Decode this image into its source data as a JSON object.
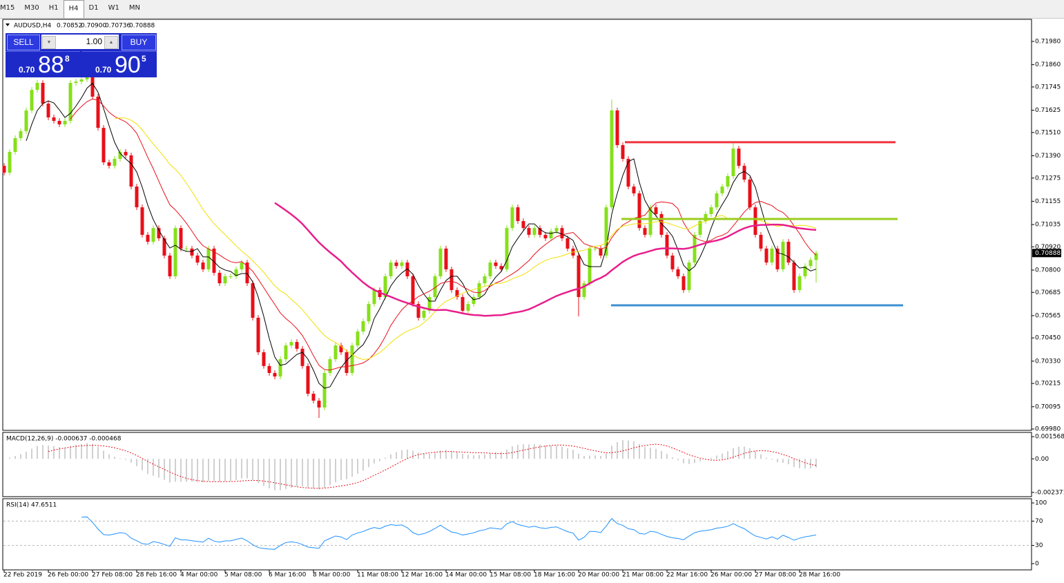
{
  "toolbar": {
    "timeframes": [
      "M15",
      "M30",
      "H1",
      "H4",
      "D1",
      "W1",
      "MN"
    ],
    "active": "H4"
  },
  "trade_panel": {
    "sell": "SELL",
    "buy": "BUY",
    "lots": "1.00",
    "bid": {
      "prefix": "0.70",
      "big": "88",
      "small": "8"
    },
    "ask": {
      "prefix": "0.70",
      "big": "90",
      "small": "5"
    }
  },
  "chart_data": [
    {
      "type": "candlestick",
      "title": "AUDUSD,H4",
      "header_values": [
        "0.70852",
        "0.70900",
        "0.70736",
        "0.70888"
      ],
      "up_color": "#86e01a",
      "down_color": "#e8101a",
      "categories": [
        "22 Feb 2019",
        null,
        null,
        null,
        null,
        null,
        null,
        null,
        "26 Feb 00:00",
        null,
        null,
        null,
        null,
        null,
        null,
        null,
        "27 Feb 08:00",
        null,
        null,
        null,
        null,
        null,
        null,
        null,
        "28 Feb 16:00",
        null,
        null,
        null,
        null,
        null,
        null,
        null,
        "4 Mar 00:00",
        null,
        null,
        null,
        null,
        null,
        null,
        null,
        "5 Mar 08:00",
        null,
        null,
        null,
        null,
        null,
        null,
        null,
        "6 Mar 16:00",
        null,
        null,
        null,
        null,
        null,
        null,
        null,
        "8 Mar 00:00",
        null,
        null,
        null,
        null,
        null,
        null,
        null,
        "11 Mar 08:00",
        null,
        null,
        null,
        null,
        null,
        null,
        null,
        "12 Mar 16:00",
        null,
        null,
        null,
        null,
        null,
        null,
        null,
        "14 Mar 00:00",
        null,
        null,
        null,
        null,
        null,
        null,
        null,
        "15 Mar 08:00",
        null,
        null,
        null,
        null,
        null,
        null,
        null,
        "18 Mar 16:00",
        null,
        null,
        null,
        null,
        null,
        null,
        null,
        "20 Mar 00:00",
        null,
        null,
        null,
        null,
        null,
        null,
        null,
        "21 Mar 08:00",
        null,
        null,
        null,
        null,
        null,
        null,
        null,
        "22 Mar 16:00",
        null,
        null,
        null,
        null,
        null,
        null,
        null,
        "26 Mar 00:00",
        null,
        null,
        null,
        null,
        null,
        null,
        null,
        "27 Mar 08:00",
        null,
        null,
        null,
        null,
        null,
        null,
        null,
        "28 Mar 16:00",
        null,
        null,
        null
      ],
      "candles": {
        "open": [
          0.71338,
          0.71303,
          0.7141,
          0.71481,
          0.71517,
          0.71624,
          0.7173,
          0.71766,
          0.71659,
          0.71588,
          0.7157,
          0.71552,
          0.7157,
          0.71766,
          0.71773,
          0.71784,
          0.71802,
          0.71695,
          0.71534,
          0.71356,
          0.71338,
          0.71374,
          0.7141,
          0.71392,
          0.71231,
          0.71124,
          0.70982,
          0.70946,
          0.71017,
          0.70964,
          0.70875,
          0.70768,
          0.71017,
          0.70911,
          0.70911,
          0.70875,
          0.70839,
          0.70804,
          0.70911,
          0.70786,
          0.70732,
          0.70768,
          0.70768,
          0.70804,
          0.70839,
          0.70732,
          0.70554,
          0.70376,
          0.70305,
          0.70269,
          0.70251,
          0.7034,
          0.70411,
          0.70429,
          0.70394,
          0.70305,
          0.70162,
          0.70126,
          0.70091,
          0.70269,
          0.7034,
          0.70411,
          0.70376,
          0.70269,
          0.70411,
          0.70483,
          0.70536,
          0.70625,
          0.70697,
          0.70661,
          0.70768,
          0.70839,
          0.70821,
          0.70839,
          0.70768,
          0.70625,
          0.70554,
          0.7059,
          0.70661,
          0.70768,
          0.70911,
          0.70804,
          0.70697,
          0.70661,
          0.7059,
          0.70625,
          0.70661,
          0.70732,
          0.70768,
          0.70839,
          0.70821,
          0.70804,
          0.71017,
          0.71124,
          0.71053,
          0.71017,
          0.70982,
          0.71017,
          0.70982,
          0.70964,
          0.71,
          0.71017,
          0.70964,
          0.70911,
          0.70875,
          0.70661,
          0.70732,
          0.70911,
          0.70911,
          0.70875,
          0.71124,
          0.71624,
          0.71445,
          0.71374,
          0.71231,
          0.71196,
          0.71017,
          0.70982,
          0.71124,
          0.71089,
          0.70982,
          0.70875,
          0.70804,
          0.70768,
          0.70697,
          0.70839,
          0.70982,
          0.71053,
          0.71089,
          0.71124,
          0.71196,
          0.71231,
          0.71285,
          0.71427,
          0.71338,
          0.71267,
          0.71124,
          0.70982,
          0.70911,
          0.70839,
          0.70911,
          0.70804,
          0.70946,
          0.70839,
          0.70697,
          0.70768,
          0.70821,
          0.70852
        ],
        "high": [
          0.71352,
          0.71424,
          0.71495,
          0.71531,
          0.71638,
          0.71744,
          0.7178,
          0.7178,
          0.71673,
          0.71602,
          0.71584,
          0.71584,
          0.7178,
          0.71787,
          0.71798,
          0.71816,
          0.71816,
          0.71709,
          0.71548,
          0.7137,
          0.71388,
          0.71424,
          0.71424,
          0.71406,
          0.71245,
          0.71138,
          0.70996,
          0.71031,
          0.71031,
          0.70978,
          0.70889,
          0.71031,
          0.71031,
          0.70925,
          0.70925,
          0.70889,
          0.70853,
          0.70925,
          0.70925,
          0.708,
          0.70782,
          0.70782,
          0.70818,
          0.70853,
          0.70853,
          0.70746,
          0.70568,
          0.7039,
          0.70319,
          0.70283,
          0.70354,
          0.70425,
          0.70443,
          0.70443,
          0.70408,
          0.70319,
          0.70176,
          0.7014,
          0.70283,
          0.70354,
          0.70425,
          0.70425,
          0.7039,
          0.70425,
          0.70497,
          0.7055,
          0.70639,
          0.70711,
          0.70711,
          0.70782,
          0.70853,
          0.70853,
          0.70853,
          0.70853,
          0.70782,
          0.70639,
          0.70604,
          0.70675,
          0.70782,
          0.70925,
          0.70925,
          0.70818,
          0.70711,
          0.70675,
          0.70639,
          0.70675,
          0.70746,
          0.70782,
          0.70853,
          0.70853,
          0.70835,
          0.71031,
          0.71138,
          0.71138,
          0.71067,
          0.71031,
          0.71031,
          0.71031,
          0.70996,
          0.71014,
          0.71031,
          0.71031,
          0.70978,
          0.70925,
          0.70889,
          0.70746,
          0.70925,
          0.70925,
          0.70925,
          0.71138,
          0.7168,
          0.71638,
          0.71459,
          0.71388,
          0.71245,
          0.7121,
          0.71031,
          0.71138,
          0.71138,
          0.71103,
          0.70996,
          0.70889,
          0.70818,
          0.70782,
          0.70853,
          0.70996,
          0.71067,
          0.71103,
          0.71138,
          0.7121,
          0.71245,
          0.71299,
          0.7146,
          0.71441,
          0.71352,
          0.71281,
          0.71138,
          0.70996,
          0.70925,
          0.70925,
          0.70925,
          0.7096,
          0.7096,
          0.70853,
          0.70782,
          0.70835,
          0.70866,
          0.709
        ],
        "low": [
          0.71289,
          0.71289,
          0.71396,
          0.71467,
          0.71503,
          0.7161,
          0.71716,
          0.71645,
          0.71574,
          0.71556,
          0.71538,
          0.71538,
          0.71556,
          0.71752,
          0.71759,
          0.7177,
          0.71681,
          0.7152,
          0.71342,
          0.71324,
          0.71324,
          0.7136,
          0.71378,
          0.71217,
          0.7111,
          0.70968,
          0.70932,
          0.70932,
          0.7095,
          0.70861,
          0.70754,
          0.70754,
          0.70897,
          0.70897,
          0.70861,
          0.70825,
          0.7079,
          0.7079,
          0.70772,
          0.70718,
          0.70718,
          0.70754,
          0.70754,
          0.7079,
          0.70718,
          0.7054,
          0.70362,
          0.70291,
          0.70255,
          0.70237,
          0.70237,
          0.70326,
          0.70397,
          0.7038,
          0.70291,
          0.70148,
          0.70112,
          0.70037,
          0.70077,
          0.70255,
          0.70326,
          0.70362,
          0.70255,
          0.70255,
          0.70397,
          0.70469,
          0.70522,
          0.70611,
          0.70647,
          0.70647,
          0.70754,
          0.70807,
          0.70807,
          0.70754,
          0.70611,
          0.7054,
          0.7054,
          0.70576,
          0.70647,
          0.70754,
          0.7079,
          0.70683,
          0.70647,
          0.70576,
          0.70576,
          0.70611,
          0.70647,
          0.70718,
          0.70754,
          0.70807,
          0.7079,
          0.7079,
          0.71003,
          0.71039,
          0.71003,
          0.70968,
          0.70968,
          0.70968,
          0.7095,
          0.7095,
          0.70986,
          0.7095,
          0.70897,
          0.70861,
          0.70561,
          0.70647,
          0.70718,
          0.70897,
          0.70861,
          0.70861,
          0.7111,
          0.71431,
          0.7136,
          0.71217,
          0.71182,
          0.71003,
          0.70968,
          0.70968,
          0.71075,
          0.70968,
          0.70861,
          0.7079,
          0.70754,
          0.70683,
          0.70683,
          0.70825,
          0.70968,
          0.71039,
          0.71075,
          0.7111,
          0.71182,
          0.71217,
          0.71271,
          0.71324,
          0.71253,
          0.7111,
          0.70968,
          0.70897,
          0.70825,
          0.70825,
          0.7079,
          0.7079,
          0.70825,
          0.70683,
          0.70683,
          0.70754,
          0.70807,
          0.70736
        ],
        "close": [
          0.71303,
          0.7141,
          0.71481,
          0.71517,
          0.71624,
          0.7173,
          0.71766,
          0.71659,
          0.71588,
          0.7157,
          0.71552,
          0.7157,
          0.71766,
          0.71773,
          0.71784,
          0.71802,
          0.71695,
          0.71534,
          0.71356,
          0.71338,
          0.71374,
          0.7141,
          0.71392,
          0.71231,
          0.71124,
          0.70982,
          0.70946,
          0.71017,
          0.70964,
          0.70875,
          0.70768,
          0.71017,
          0.70911,
          0.70911,
          0.70875,
          0.70839,
          0.70804,
          0.70911,
          0.70786,
          0.70732,
          0.70768,
          0.70768,
          0.70804,
          0.70839,
          0.70732,
          0.70554,
          0.70376,
          0.70305,
          0.70269,
          0.70251,
          0.7034,
          0.70411,
          0.70429,
          0.70394,
          0.70305,
          0.70162,
          0.70126,
          0.70091,
          0.70269,
          0.7034,
          0.70411,
          0.70376,
          0.70269,
          0.70411,
          0.70483,
          0.70536,
          0.70625,
          0.70697,
          0.70661,
          0.70768,
          0.70839,
          0.70821,
          0.70839,
          0.70768,
          0.70625,
          0.70554,
          0.7059,
          0.70661,
          0.70768,
          0.70911,
          0.70804,
          0.70697,
          0.70661,
          0.7059,
          0.70625,
          0.70661,
          0.70732,
          0.70768,
          0.70839,
          0.70821,
          0.70804,
          0.71017,
          0.71124,
          0.71053,
          0.71017,
          0.70982,
          0.71017,
          0.70982,
          0.70964,
          0.71,
          0.71017,
          0.70964,
          0.70911,
          0.70875,
          0.70661,
          0.70732,
          0.70911,
          0.70911,
          0.70875,
          0.71124,
          0.71624,
          0.71445,
          0.71374,
          0.71231,
          0.71196,
          0.71017,
          0.70982,
          0.71124,
          0.71089,
          0.70982,
          0.70875,
          0.70804,
          0.70768,
          0.70697,
          0.70839,
          0.70982,
          0.71053,
          0.71089,
          0.71124,
          0.71196,
          0.71231,
          0.71285,
          0.71427,
          0.71338,
          0.71267,
          0.71124,
          0.70982,
          0.70911,
          0.70839,
          0.70911,
          0.70804,
          0.70946,
          0.70839,
          0.70697,
          0.70768,
          0.70821,
          0.70852,
          0.70888
        ]
      },
      "moving_averages": [
        {
          "period": 5,
          "color": "#000000",
          "width": 1
        },
        {
          "period": 13,
          "color": "#e8101a",
          "width": 1
        },
        {
          "period": 21,
          "color": "#f2e000",
          "width": 1
        },
        {
          "period": 50,
          "color": "#e81e8c",
          "width": 2.5
        }
      ],
      "levels": [
        {
          "value": 0.7146,
          "color": "#f0323c"
        },
        {
          "value": 0.71064,
          "color": "#9acd1e"
        },
        {
          "value": 0.70618,
          "color": "#3d8fd1"
        }
      ],
      "last_price": {
        "value": 0.70888,
        "label": "0.70888"
      },
      "ylim": [
        0.69973,
        0.72094
      ],
      "yticks": [
        {
          "value": 0.7198,
          "label": "0.71980"
        },
        {
          "value": 0.7186,
          "label": "0.71860"
        },
        {
          "value": 0.71745,
          "label": "0.71745"
        },
        {
          "value": 0.71625,
          "label": "0.71625"
        },
        {
          "value": 0.7151,
          "label": "0.71510"
        },
        {
          "value": 0.7139,
          "label": "0.71390"
        },
        {
          "value": 0.71275,
          "label": "0.71275"
        },
        {
          "value": 0.71155,
          "label": "0.71155"
        },
        {
          "value": 0.71035,
          "label": "0.71035"
        },
        {
          "value": 0.7092,
          "label": "0.70920"
        },
        {
          "value": 0.708,
          "label": "0.70800"
        },
        {
          "value": 0.70685,
          "label": "0.70685"
        },
        {
          "value": 0.70565,
          "label": "0.70565"
        },
        {
          "value": 0.7045,
          "label": "0.70450"
        },
        {
          "value": 0.7033,
          "label": "0.70330"
        },
        {
          "value": 0.70215,
          "label": "0.70215"
        },
        {
          "value": 0.70095,
          "label": "0.70095"
        },
        {
          "value": 0.6998,
          "label": "0.69980"
        }
      ]
    },
    {
      "type": "macd",
      "title": "MACD(12,26,9) -0.000637 -0.000468",
      "fast": 12,
      "slow": 26,
      "signal": 9,
      "color": "#a0a0a0",
      "signal_color": "#e8101a",
      "ylim": [
        -0.00267,
        0.00187
      ],
      "yticks": [
        0.001568,
        {
          "value": 0,
          "label": "0.00"
        },
        -0.002371
      ]
    },
    {
      "type": "rsi",
      "title": "RSI(14) 47.6511",
      "period": 14,
      "color": "#1e90ff",
      "levels": [
        70,
        30
      ],
      "ylim": [
        -10.3,
        106.9
      ],
      "yticks": [
        100,
        70,
        30,
        0
      ]
    }
  ]
}
